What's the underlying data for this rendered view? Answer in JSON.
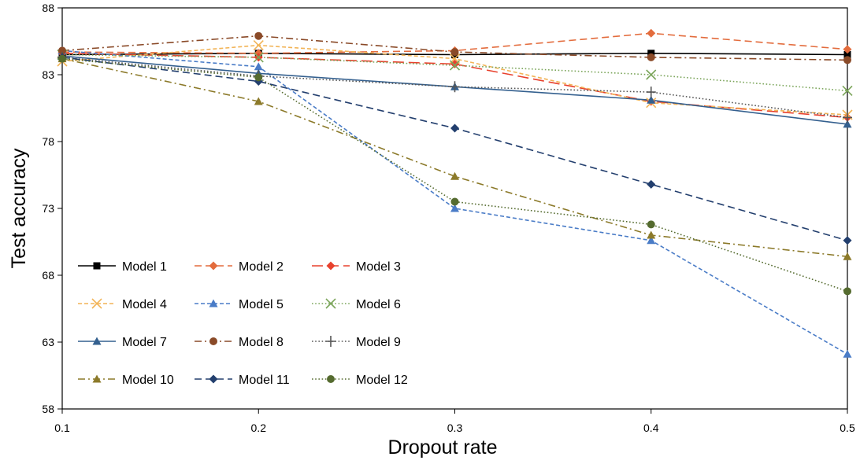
{
  "chart_data": {
    "type": "line",
    "title": "",
    "xlabel": "Dropout rate",
    "ylabel": "Test accuracy",
    "x": [
      0.1,
      0.2,
      0.3,
      0.4,
      0.5
    ],
    "x_tick_labels": [
      "0.1",
      "0.2",
      "0.3",
      "0.4",
      "0.5"
    ],
    "xlim": [
      0.1,
      0.5
    ],
    "ylim": [
      58,
      88
    ],
    "y_ticks": [
      58,
      63,
      68,
      73,
      78,
      83,
      88
    ],
    "y_tick_labels": [
      "58",
      "63",
      "68",
      "73",
      "78",
      "83",
      "88"
    ],
    "grid": false,
    "legend_position": "bottom-left inside",
    "legend_columns": 3,
    "series": [
      {
        "name": "Model 1",
        "color": "#000000",
        "dash": "solid",
        "marker": "square",
        "values": [
          84.5,
          84.6,
          84.5,
          84.6,
          84.5
        ]
      },
      {
        "name": "Model 2",
        "color": "#E36C3D",
        "dash": "dash",
        "marker": "diamond",
        "values": [
          84.7,
          84.6,
          84.8,
          86.1,
          84.9
        ]
      },
      {
        "name": "Model 3",
        "color": "#E8412D",
        "dash": "longdash",
        "marker": "diamond",
        "values": [
          84.6,
          84.3,
          83.8,
          81.0,
          79.8
        ]
      },
      {
        "name": "Model 4",
        "color": "#F2B457",
        "dash": "shortdash",
        "marker": "x",
        "values": [
          84.0,
          85.2,
          84.2,
          80.9,
          80.0
        ]
      },
      {
        "name": "Model 5",
        "color": "#4A7CC7",
        "dash": "shortdash",
        "marker": "triangle",
        "values": [
          84.8,
          83.6,
          73.0,
          70.6,
          62.1
        ]
      },
      {
        "name": "Model 6",
        "color": "#7BA55A",
        "dash": "dot",
        "marker": "x",
        "values": [
          84.5,
          84.3,
          83.7,
          83.0,
          81.8
        ]
      },
      {
        "name": "Model 7",
        "color": "#34608F",
        "dash": "solid",
        "marker": "triangle",
        "values": [
          84.4,
          83.1,
          82.1,
          81.1,
          79.3
        ]
      },
      {
        "name": "Model 8",
        "color": "#8A4A28",
        "dash": "dashdot",
        "marker": "circle",
        "values": [
          84.8,
          85.9,
          84.7,
          84.3,
          84.1
        ]
      },
      {
        "name": "Model 9",
        "color": "#555555",
        "dash": "dot",
        "marker": "plus",
        "values": [
          84.3,
          82.9,
          82.1,
          81.7,
          79.8
        ]
      },
      {
        "name": "Model 10",
        "color": "#8C7A2A",
        "dash": "dashdot",
        "marker": "triangle",
        "values": [
          84.2,
          81.0,
          75.4,
          71.0,
          69.4
        ]
      },
      {
        "name": "Model 11",
        "color": "#233F6E",
        "dash": "dash",
        "marker": "diamond",
        "values": [
          84.3,
          82.5,
          79.0,
          74.8,
          70.6
        ]
      },
      {
        "name": "Model 12",
        "color": "#556B2F",
        "dash": "dot",
        "marker": "circle",
        "values": [
          84.2,
          82.8,
          73.5,
          71.8,
          66.8
        ]
      }
    ]
  }
}
